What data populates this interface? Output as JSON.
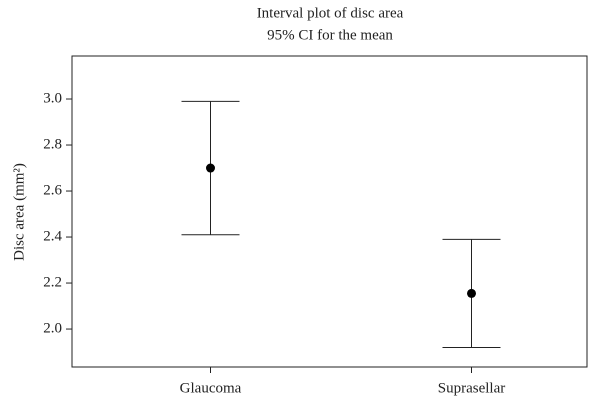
{
  "chart_data": {
    "type": "interval",
    "title": "Interval plot of disc area",
    "subtitle": "95% CI for the mean",
    "y_label": "Disc area (mm²)",
    "categories": [
      "Glaucoma",
      "Suprasellar"
    ],
    "values": [
      2.7,
      2.155
    ],
    "lower": [
      2.41,
      1.92
    ],
    "upper": [
      2.99,
      2.39
    ],
    "color": "#000000",
    "ylim": [
      1.835,
      3.187
    ],
    "yticks": [
      {
        "value": 2.0,
        "label": "2.0"
      },
      2.2,
      2.4,
      2.6,
      2.8,
      {
        "value": 3.0,
        "label": "3.0"
      }
    ],
    "grid": false
  }
}
